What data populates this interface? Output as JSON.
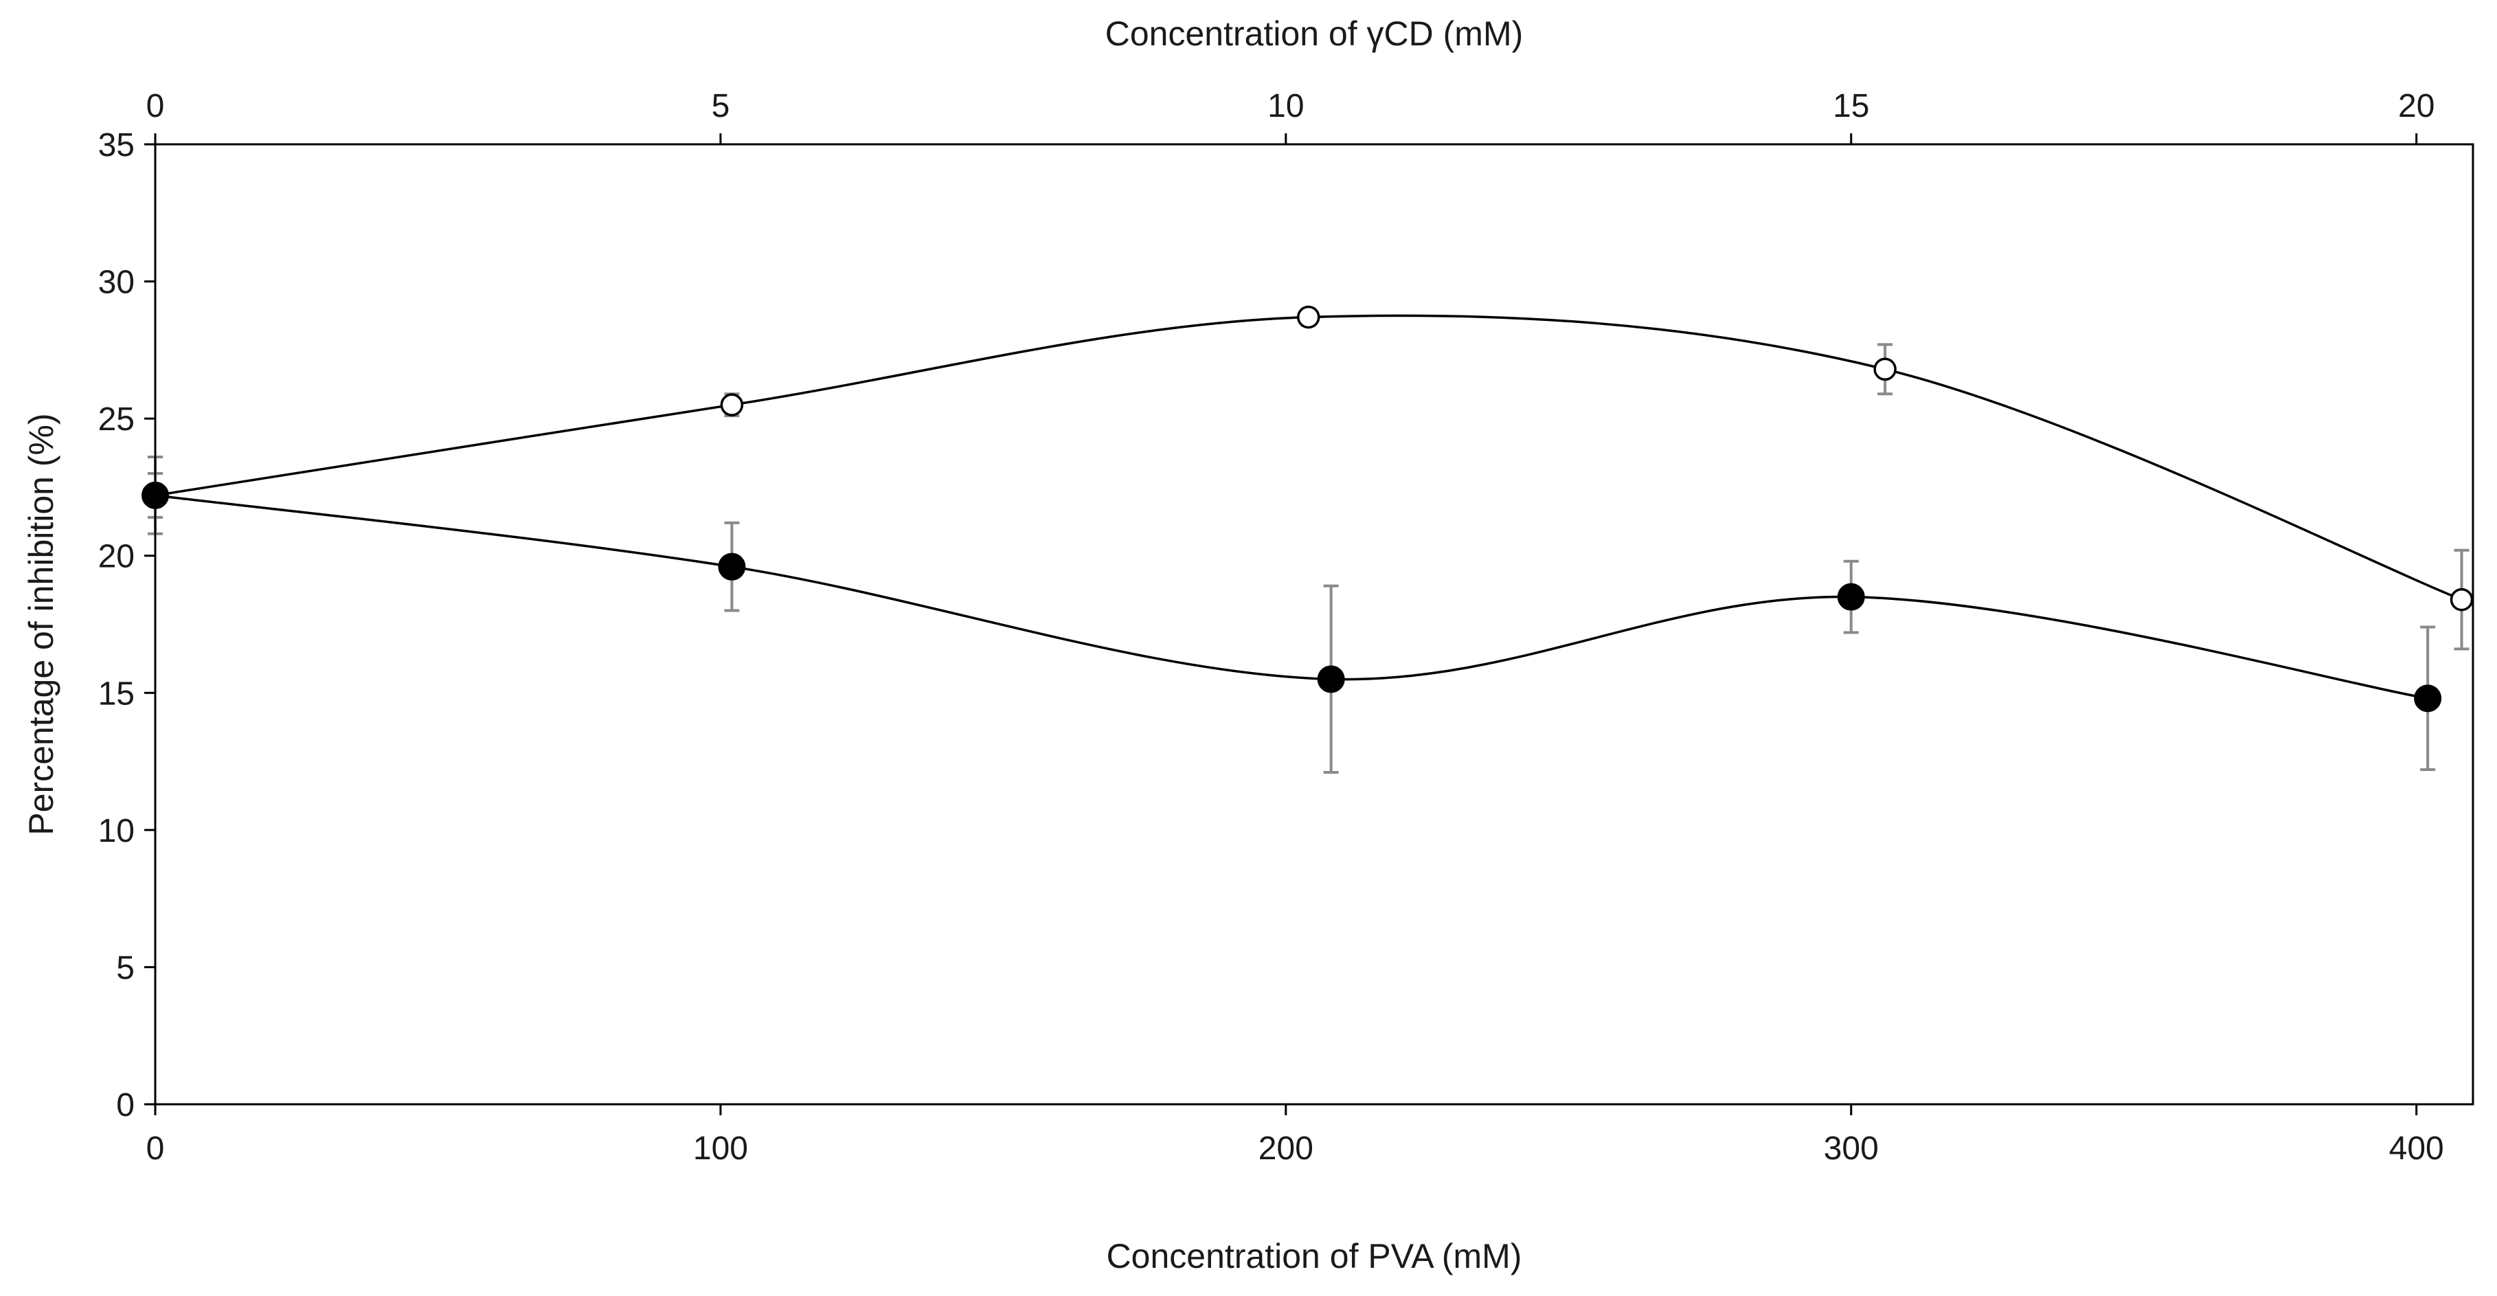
{
  "chart_data": {
    "type": "scatter",
    "title": "",
    "xlabel": "Concentration of PVA (mM)",
    "x2label": "Concentration of γCD (mM)",
    "ylabel": "Percentage of inhibition (%)",
    "xlim": [
      0,
      410
    ],
    "x2lim": [
      0,
      20.5
    ],
    "ylim": [
      0,
      35
    ],
    "xticks": [
      0,
      100,
      200,
      300,
      400
    ],
    "xtick_labels": [
      "0",
      "100",
      "200",
      "300",
      "400"
    ],
    "x2ticks": [
      0,
      5,
      10,
      15,
      20
    ],
    "x2tick_labels": [
      "0",
      "5",
      "10",
      "15",
      "20"
    ],
    "yticks": [
      0,
      5,
      10,
      15,
      20,
      25,
      30,
      35
    ],
    "ytick_labels": [
      "0",
      "5",
      "10",
      "15",
      "20",
      "25",
      "30",
      "35"
    ],
    "grid": false,
    "series": [
      {
        "name": "γCD",
        "marker": "open-circle",
        "axis": "top",
        "x": [
          0,
          5.1,
          10.2,
          15.3,
          20.4
        ],
        "y": [
          22.2,
          25.5,
          28.7,
          26.8,
          18.4
        ],
        "err": [
          1.4,
          0.4,
          0.3,
          0.9,
          1.8
        ]
      },
      {
        "name": "PVA",
        "marker": "filled-circle",
        "axis": "bottom",
        "x": [
          0,
          102,
          208,
          300,
          402
        ],
        "y": [
          22.2,
          19.6,
          15.5,
          18.5,
          14.8
        ],
        "err": [
          0.8,
          1.6,
          3.4,
          1.3,
          2.6
        ]
      }
    ]
  }
}
